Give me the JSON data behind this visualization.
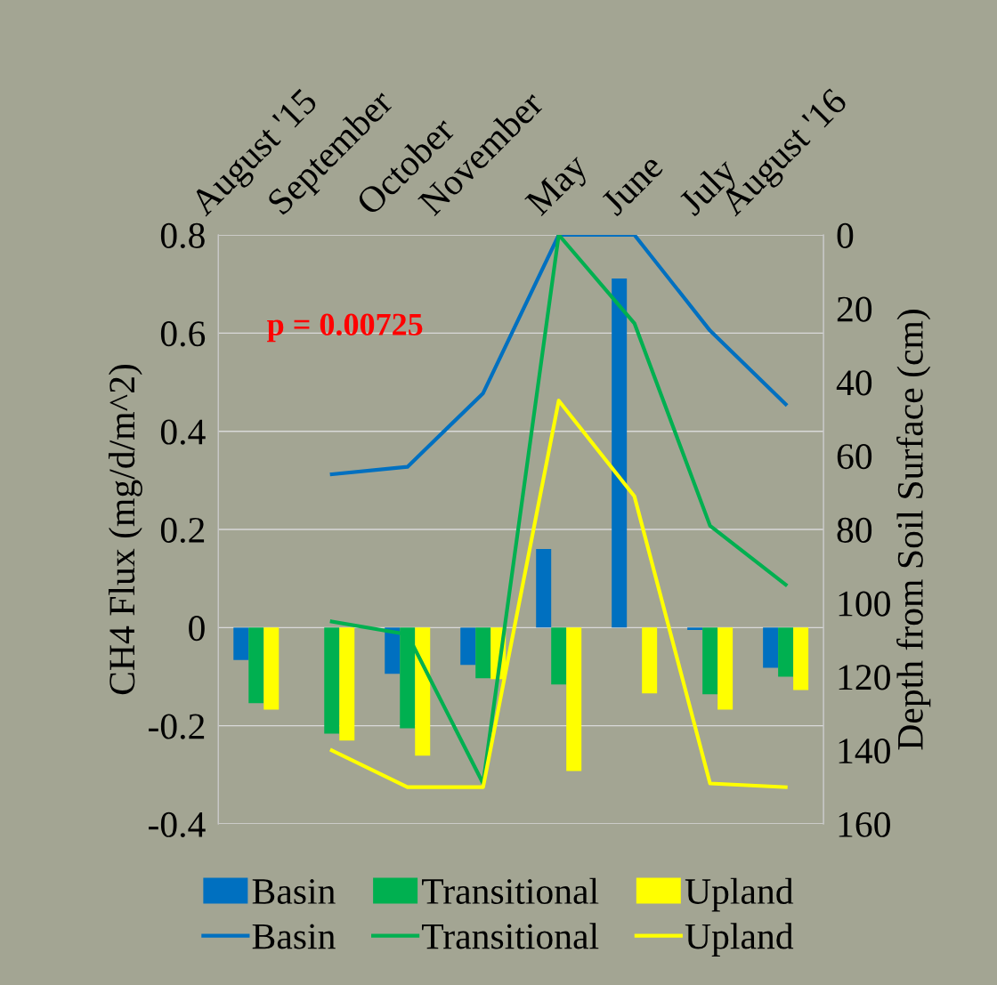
{
  "chart_data": {
    "type": "bar",
    "ylabel": "CH4 Flux (mg/d/m^2)",
    "y2label": "Depth from Soil Surface (cm)",
    "categories": [
      "August '15",
      "September",
      "October",
      "November",
      "May",
      "June",
      "July",
      "August '16"
    ],
    "ylim": [
      -0.4,
      0.8
    ],
    "yticks": [
      -0.4,
      -0.2,
      0,
      0.2,
      0.4,
      0.6,
      0.8
    ],
    "y2lim": [
      160,
      0
    ],
    "y2ticks": [
      0,
      20,
      40,
      60,
      80,
      100,
      120,
      140,
      160
    ],
    "grid": "y",
    "legend": "bottom",
    "annotations": [
      "p = 0.00725"
    ],
    "series": [
      {
        "name": "Basin",
        "type": "bar",
        "color": "#0070c0",
        "values": [
          -0.066,
          0,
          -0.094,
          -0.076,
          0.16,
          0.711,
          -0.005,
          -0.082
        ]
      },
      {
        "name": "Transitional",
        "type": "bar",
        "color": "#00b050",
        "values": [
          -0.154,
          -0.216,
          -0.205,
          -0.103,
          -0.116,
          0,
          -0.136,
          -0.1
        ]
      },
      {
        "name": "Upland",
        "type": "bar",
        "color": "#ffff00",
        "values": [
          -0.167,
          -0.23,
          -0.261,
          -0.105,
          -0.292,
          -0.134,
          -0.167,
          -0.127
        ]
      },
      {
        "name": "Basin",
        "type": "line",
        "axis": "y2",
        "color": "#0070c0",
        "values": [
          null,
          65,
          63,
          43,
          0,
          0,
          26,
          46
        ]
      },
      {
        "name": "Transitional",
        "type": "line",
        "axis": "y2",
        "color": "#00b050",
        "values": [
          null,
          105,
          108.5,
          149,
          0,
          24,
          79,
          95
        ]
      },
      {
        "name": "Upland",
        "type": "line",
        "axis": "y2",
        "color": "#ffff00",
        "values": [
          null,
          140,
          150,
          150,
          45,
          71,
          149,
          150
        ]
      }
    ]
  }
}
